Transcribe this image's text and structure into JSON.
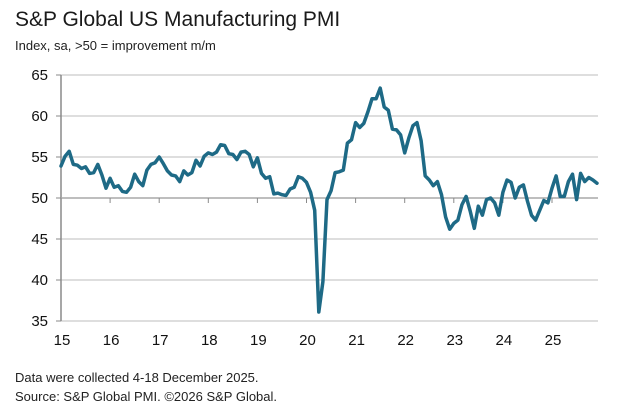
{
  "header": {
    "title": "S&P Global US Manufacturing PMI",
    "subtitle": "Index, sa, >50 = improvement m/m"
  },
  "footer": {
    "note": "Data were collected 4-18 December 2025.",
    "source": "Source: S&P Global PMI. ©2026 S&P Global."
  },
  "colors": {
    "line": "#1e6a86",
    "grid": "#d4d4d4",
    "axis": "#8a8a8a"
  },
  "chart_data": {
    "type": "line",
    "title": "S&P Global US Manufacturing PMI",
    "subtitle": "Index, sa, >50 = improvement m/m",
    "xlabel": "",
    "ylabel": "",
    "ylim": [
      35,
      65
    ],
    "yticks": [
      35,
      40,
      45,
      50,
      55,
      60,
      65
    ],
    "xticks": [
      "15",
      "16",
      "17",
      "18",
      "19",
      "20",
      "21",
      "22",
      "23",
      "24",
      "25"
    ],
    "grid": true,
    "x_start": "2015-01",
    "frequency": "monthly",
    "series": [
      {
        "name": "US Manufacturing PMI",
        "values": [
          53.9,
          55.1,
          55.7,
          54.1,
          54.0,
          53.6,
          53.8,
          53.0,
          53.1,
          54.1,
          52.8,
          51.2,
          52.4,
          51.3,
          51.5,
          50.8,
          50.7,
          51.3,
          52.9,
          52.0,
          51.5,
          53.4,
          54.1,
          54.3,
          55.0,
          54.2,
          53.3,
          52.8,
          52.7,
          52.0,
          53.3,
          52.8,
          53.1,
          54.6,
          53.9,
          55.1,
          55.5,
          55.3,
          55.6,
          56.5,
          56.4,
          55.4,
          55.3,
          54.7,
          55.6,
          55.7,
          55.3,
          53.8,
          54.9,
          53.0,
          52.4,
          52.6,
          50.5,
          50.6,
          50.4,
          50.3,
          51.1,
          51.3,
          52.6,
          52.4,
          51.9,
          50.7,
          48.5,
          36.1,
          39.8,
          49.8,
          50.9,
          53.1,
          53.2,
          53.4,
          56.7,
          57.1,
          59.2,
          58.6,
          59.1,
          60.5,
          62.1,
          62.1,
          63.4,
          61.1,
          60.7,
          58.4,
          58.3,
          57.7,
          55.5,
          57.3,
          58.8,
          59.2,
          57.0,
          52.7,
          52.2,
          51.5,
          52.0,
          50.4,
          47.7,
          46.2,
          46.9,
          47.3,
          49.2,
          50.2,
          48.4,
          46.3,
          49.0,
          47.9,
          49.8,
          50.0,
          49.4,
          47.9,
          50.7,
          52.2,
          51.9,
          50.0,
          51.3,
          51.6,
          49.6,
          47.9,
          47.3,
          48.5,
          49.7,
          49.4,
          51.2,
          52.7,
          50.2,
          50.2,
          52.0,
          52.9,
          49.8,
          53.0,
          52.0,
          52.5,
          52.2,
          51.8
        ]
      }
    ]
  }
}
